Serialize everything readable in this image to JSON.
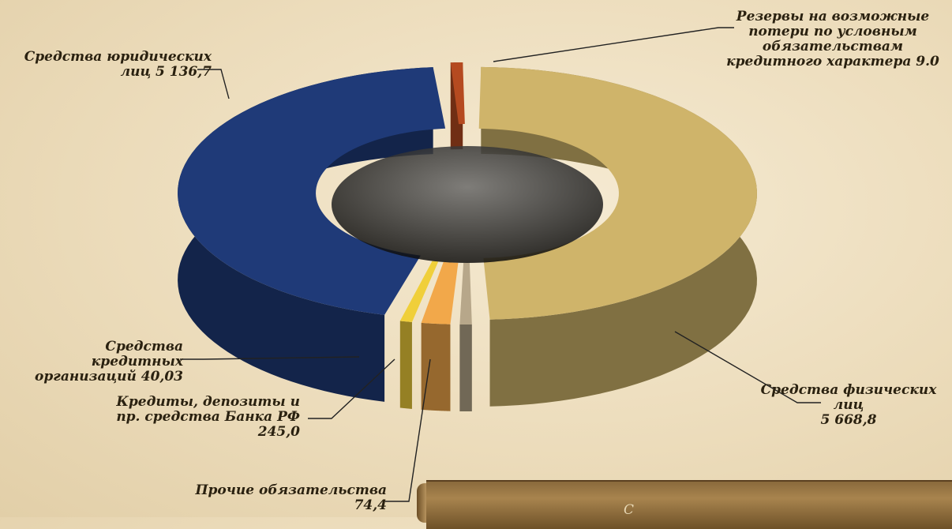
{
  "chart_data": {
    "type": "pie",
    "title": "",
    "slices": [
      {
        "name": "Средства физических лиц",
        "label_lines": [
          "Средства физических лиц",
          "5 668,8"
        ],
        "value": 5668.8,
        "color": "#cfb46a"
      },
      {
        "name": "Прочие обязательства",
        "label_lines": [
          "Прочие обязательства",
          "74,4"
        ],
        "value": 74.4,
        "color": "#b7a78a"
      },
      {
        "name": "Кредиты, депозиты и пр. средства Банка РФ",
        "label_lines": [
          "Кредиты, депозиты и",
          "пр. средства Банка РФ",
          "245,0"
        ],
        "value": 245.0,
        "color": "#f2a84a"
      },
      {
        "name": "Средства кредитных организаций",
        "label_lines": [
          "Средства кредитных",
          "организаций 40,03"
        ],
        "value": 40.03,
        "color": "#f0cf3a"
      },
      {
        "name": "Средства юридических лиц",
        "label_lines": [
          "Средства юридических",
          "лиц 5 136,7"
        ],
        "value": 5136.7,
        "color": "#1f3a78"
      },
      {
        "name": "Резервы на возможные потери по условным обязательствам кредитного характера",
        "label_lines": [
          "Резервы на возможные",
          "потери по условным",
          "обязательствам",
          "кредитного характера 9.0"
        ],
        "value": 9.0,
        "color": "#b54a20"
      }
    ]
  },
  "footer_text": "С"
}
